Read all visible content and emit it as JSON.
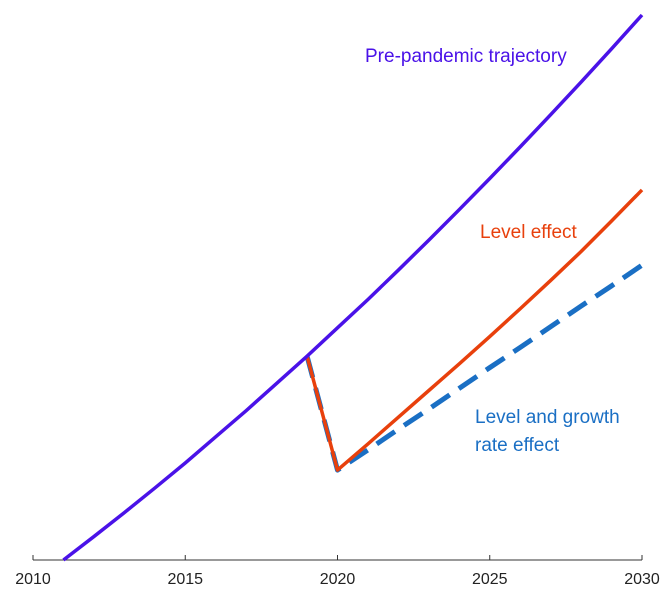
{
  "chart_data": {
    "type": "line",
    "x": [
      2011,
      2012,
      2013,
      2014,
      2015,
      2016,
      2017,
      2018,
      2019,
      2020,
      2021,
      2022,
      2023,
      2024,
      2025,
      2026,
      2027,
      2028,
      2029,
      2030
    ],
    "series": [
      {
        "name": "Pre-pandemic trajectory",
        "color": "#4a12e8",
        "style": "solid",
        "values": [
          0,
          4.3,
          8.7,
          13.2,
          17.8,
          22.6,
          27.4,
          32.4,
          37.4,
          42.6,
          47.8,
          53.2,
          58.7,
          64.3,
          70.0,
          75.8,
          81.7,
          87.7,
          93.8,
          100.0
        ]
      },
      {
        "name": "Level effect",
        "color": "#e8400c",
        "style": "solid",
        "values": [
          null,
          null,
          null,
          null,
          null,
          null,
          null,
          null,
          37.4,
          16.5,
          21.3,
          26.2,
          31.1,
          36.0,
          41.0,
          46.1,
          51.3,
          56.6,
          62.2,
          67.9
        ]
      },
      {
        "name": "Level and growth rate effect",
        "color": "#1a6fc4",
        "style": "dashed",
        "values": [
          null,
          null,
          null,
          null,
          null,
          null,
          null,
          null,
          37.4,
          16.5,
          20.2,
          24.0,
          27.7,
          31.5,
          35.3,
          39.0,
          42.8,
          46.6,
          50.3,
          54.1
        ]
      }
    ],
    "xlim": [
      2010,
      2030
    ],
    "xticks": [
      2010,
      2015,
      2020,
      2025,
      2030
    ],
    "ylim": [
      0,
      100
    ]
  }
}
